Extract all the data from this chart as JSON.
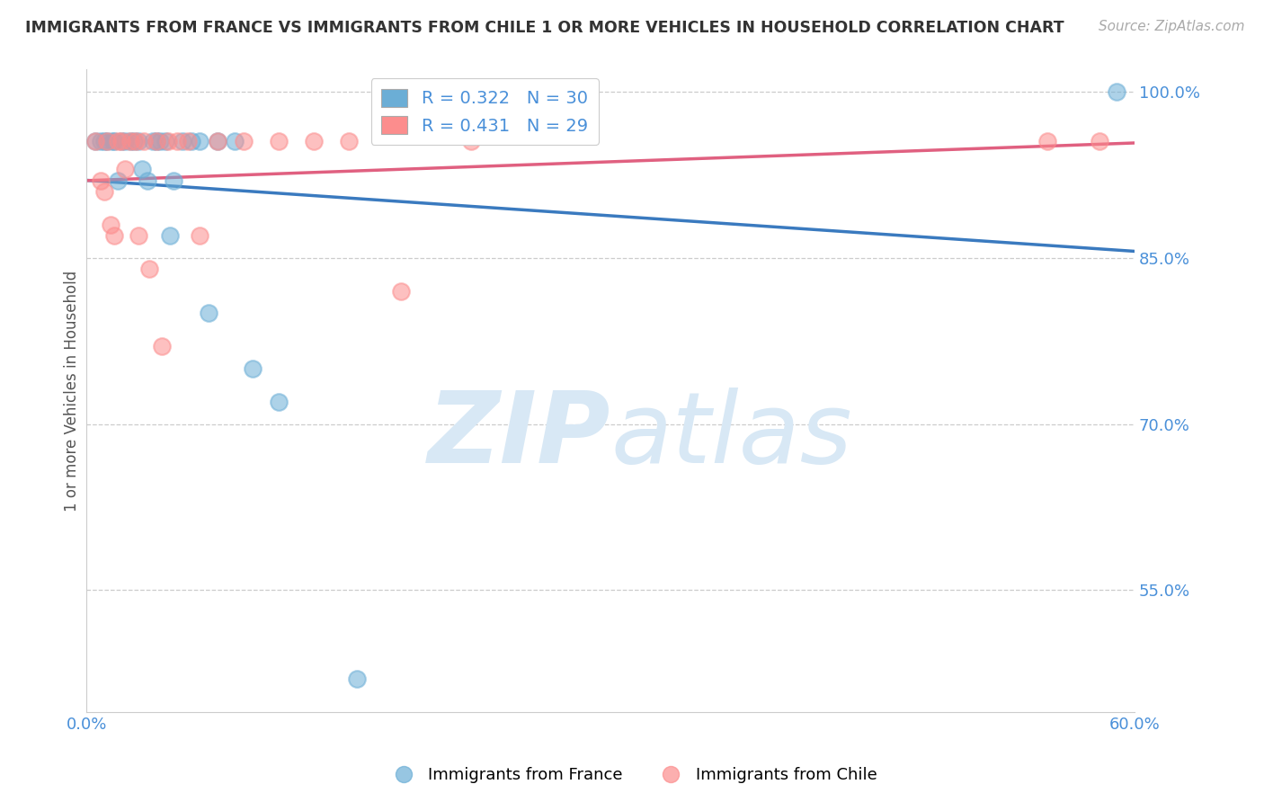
{
  "title": "IMMIGRANTS FROM FRANCE VS IMMIGRANTS FROM CHILE 1 OR MORE VEHICLES IN HOUSEHOLD CORRELATION CHART",
  "source": "Source: ZipAtlas.com",
  "ylabel": "1 or more Vehicles in Household",
  "xlim": [
    0.0,
    0.6
  ],
  "ylim": [
    0.44,
    1.02
  ],
  "ytick_vals": [
    0.55,
    0.7,
    0.85,
    1.0
  ],
  "ytick_labels": [
    "55.0%",
    "70.0%",
    "85.0%",
    "100.0%"
  ],
  "france_color": "#6baed6",
  "chile_color": "#fc8d8d",
  "france_line_color": "#3a7abf",
  "chile_line_color": "#e06080",
  "france_R": 0.322,
  "france_N": 30,
  "chile_R": 0.431,
  "chile_N": 29,
  "france_x": [
    0.005,
    0.008,
    0.01,
    0.012,
    0.015,
    0.016,
    0.018,
    0.02,
    0.022,
    0.025,
    0.027,
    0.03,
    0.032,
    0.035,
    0.038,
    0.04,
    0.042,
    0.045,
    0.048,
    0.05,
    0.055,
    0.06,
    0.065,
    0.07,
    0.075,
    0.085,
    0.095,
    0.11,
    0.155,
    0.59
  ],
  "france_y": [
    0.955,
    0.955,
    0.955,
    0.955,
    0.955,
    0.955,
    0.92,
    0.955,
    0.955,
    0.955,
    0.955,
    0.955,
    0.93,
    0.92,
    0.955,
    0.955,
    0.955,
    0.955,
    0.87,
    0.92,
    0.955,
    0.955,
    0.955,
    0.8,
    0.955,
    0.955,
    0.75,
    0.72,
    0.47,
    1.0
  ],
  "chile_x": [
    0.005,
    0.008,
    0.01,
    0.012,
    0.014,
    0.016,
    0.018,
    0.02,
    0.022,
    0.025,
    0.028,
    0.03,
    0.033,
    0.036,
    0.04,
    0.043,
    0.047,
    0.052,
    0.058,
    0.065,
    0.075,
    0.09,
    0.11,
    0.13,
    0.15,
    0.18,
    0.22,
    0.55,
    0.58
  ],
  "chile_y": [
    0.955,
    0.92,
    0.91,
    0.955,
    0.88,
    0.87,
    0.955,
    0.955,
    0.93,
    0.955,
    0.955,
    0.87,
    0.955,
    0.84,
    0.955,
    0.77,
    0.955,
    0.955,
    0.955,
    0.87,
    0.955,
    0.955,
    0.955,
    0.955,
    0.955,
    0.82,
    0.955,
    0.955,
    0.955
  ],
  "background_color": "#ffffff",
  "grid_color": "#cccccc",
  "watermark_color": "#d8e8f5"
}
